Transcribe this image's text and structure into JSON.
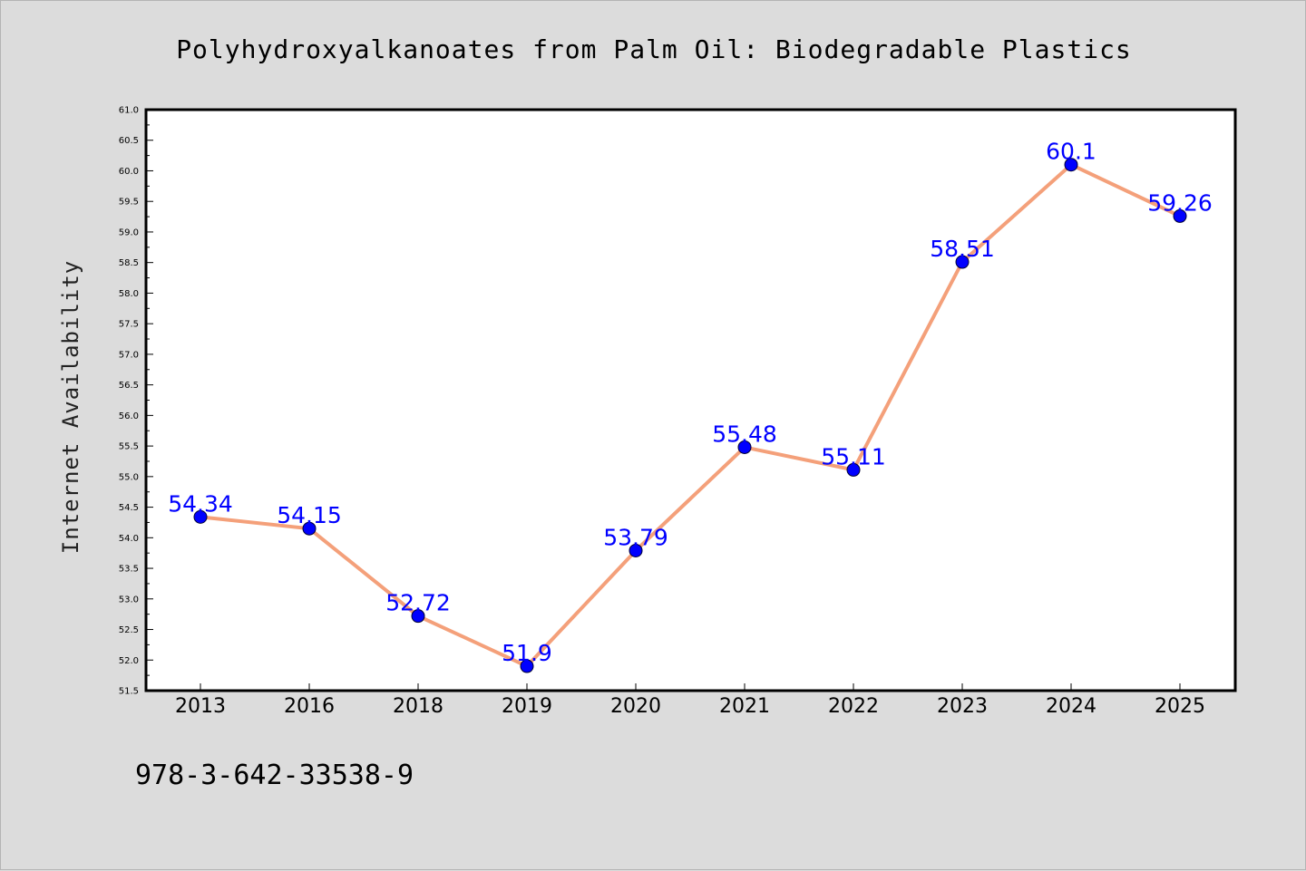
{
  "chart_data": {
    "type": "line",
    "title": "Polyhydroxyalkanoates from Palm Oil: Biodegradable Plastics",
    "xlabel": "",
    "ylabel": "Internet Availability",
    "categories": [
      "2013",
      "2016",
      "2018",
      "2019",
      "2020",
      "2021",
      "2022",
      "2023",
      "2024",
      "2025"
    ],
    "series": [
      {
        "values": [
          54.34,
          54.15,
          52.72,
          51.9,
          53.79,
          55.48,
          55.11,
          58.51,
          60.1,
          59.26
        ],
        "labels": [
          "54.34",
          "54.15",
          "52.72",
          "51.9",
          "53.79",
          "55.48",
          "55.11",
          "58.51",
          "60.1",
          "59.26"
        ],
        "line_color": "#f4a07a",
        "marker_color": "#0000ff"
      }
    ],
    "ylim": [
      51.5,
      61.0
    ],
    "yticks": [
      "51.5",
      "52.0",
      "52.5",
      "53.0",
      "53.5",
      "54.0",
      "54.5",
      "55.0",
      "55.5",
      "56.0",
      "56.5",
      "57.0",
      "57.5",
      "58.0",
      "58.5",
      "59.0",
      "59.5",
      "60.0",
      "60.5",
      "61.0"
    ],
    "grid": false,
    "legend": "none"
  },
  "annotation": "978-3-642-33538-9",
  "colors": {
    "background": "#dcdcdc",
    "plot_background": "#ffffff",
    "data_label": "#0000ff"
  }
}
